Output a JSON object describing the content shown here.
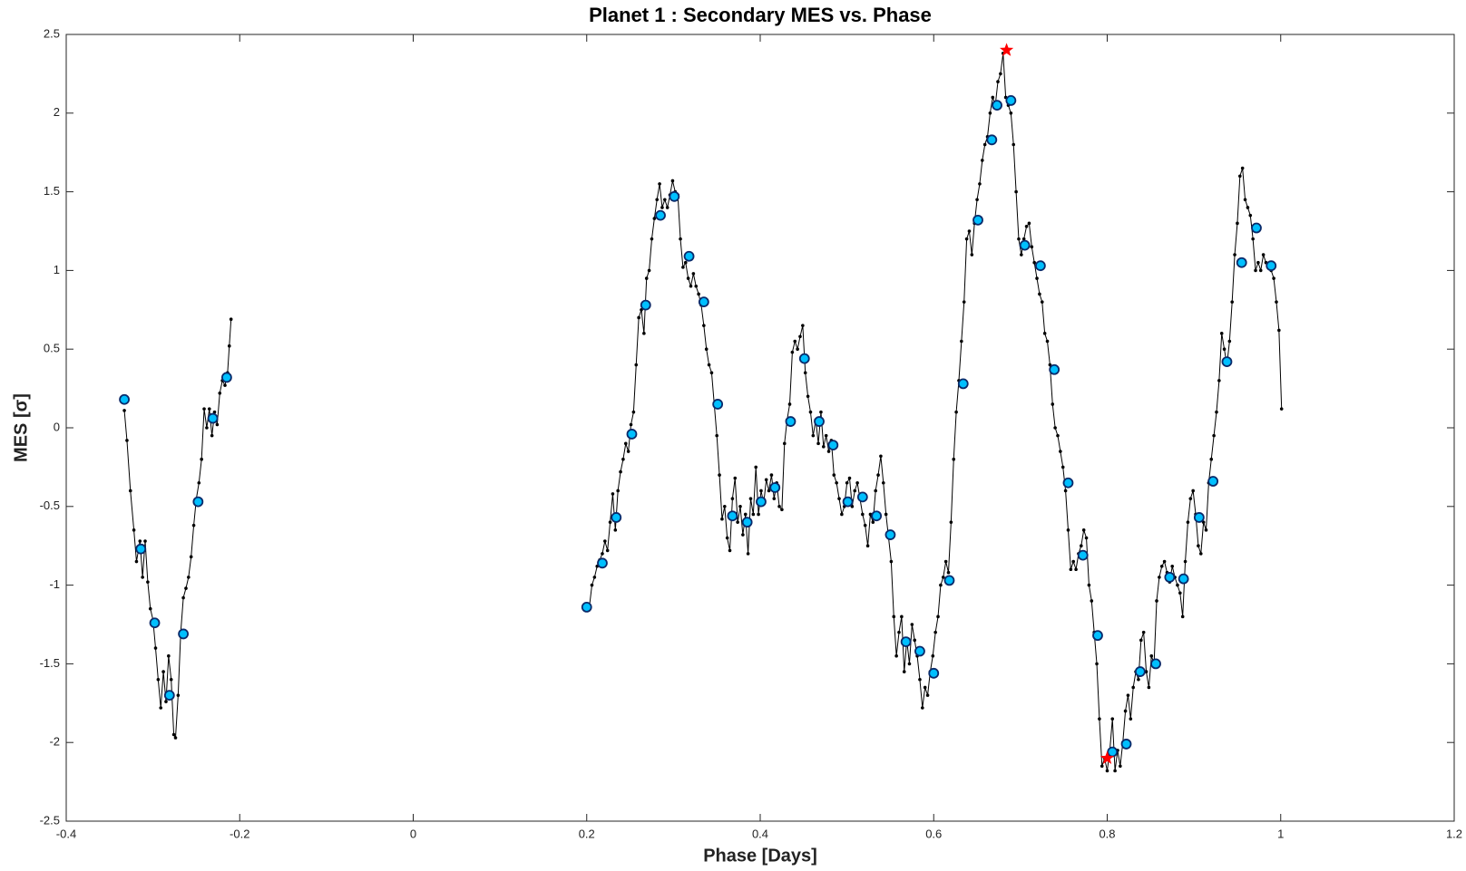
{
  "chart_data": {
    "type": "line",
    "title": "Planet 1 : Secondary MES vs. Phase",
    "xlabel": "Phase [Days]",
    "ylabel": "MES [σ]",
    "xlim": [
      -0.4,
      1.2
    ],
    "xticks": [
      -0.4,
      -0.2,
      0,
      0.2,
      0.4,
      0.6,
      0.8,
      1,
      1.2
    ],
    "ylim": [
      -2.5,
      2.5
    ],
    "yticks": [
      -2.5,
      -2,
      -1.5,
      -1,
      -0.5,
      0,
      0.5,
      1,
      1.5,
      2,
      2.5
    ],
    "grid": false,
    "series": [
      {
        "color": "#000000",
        "marker": "dot",
        "line": true,
        "x": [
          -0.333,
          -0.33,
          -0.326,
          -0.322,
          -0.319,
          -0.315,
          -0.312,
          -0.309,
          -0.306,
          -0.303,
          -0.3,
          -0.297,
          -0.294,
          -0.291,
          -0.288,
          -0.285,
          -0.282,
          -0.279,
          -0.276,
          -0.274,
          -0.271,
          -0.268,
          -0.265,
          -0.262,
          -0.259,
          -0.256,
          -0.253,
          -0.25,
          -0.247,
          -0.244,
          -0.241,
          -0.238,
          -0.235,
          -0.232,
          -0.229,
          -0.226,
          -0.223,
          -0.22,
          -0.217,
          -0.214,
          -0.212,
          -0.21
        ],
        "values": [
          0.11,
          -0.08,
          -0.4,
          -0.65,
          -0.85,
          -0.72,
          -0.95,
          -0.72,
          -0.98,
          -1.15,
          -1.22,
          -1.4,
          -1.6,
          -1.78,
          -1.55,
          -1.74,
          -1.45,
          -1.6,
          -1.95,
          -1.97,
          -1.7,
          -1.3,
          -1.08,
          -1.02,
          -0.95,
          -0.82,
          -0.62,
          -0.45,
          -0.35,
          -0.2,
          0.12,
          0,
          0.12,
          -0.05,
          0.1,
          0.02,
          0.22,
          0.3,
          0.27,
          0.35,
          0.52,
          0.69
        ]
      },
      {
        "color": "#000000",
        "marker": "dot",
        "line": true,
        "x": [
          0.2,
          0.203,
          0.206,
          0.209,
          0.212,
          0.215,
          0.218,
          0.221,
          0.224,
          0.227,
          0.23,
          0.233,
          0.236,
          0.239,
          0.242,
          0.245,
          0.248,
          0.251,
          0.254,
          0.257,
          0.26,
          0.263,
          0.266,
          0.269,
          0.272,
          0.275,
          0.278,
          0.281,
          0.284,
          0.287,
          0.29,
          0.293,
          0.296,
          0.299,
          0.302,
          0.305,
          0.308,
          0.311,
          0.314,
          0.317,
          0.32,
          0.323,
          0.326,
          0.329,
          0.332,
          0.335,
          0.338,
          0.341,
          0.344,
          0.347,
          0.35,
          0.353,
          0.356,
          0.359,
          0.362,
          0.365,
          0.368,
          0.371,
          0.374,
          0.377,
          0.38,
          0.383,
          0.386,
          0.389,
          0.392,
          0.395,
          0.398,
          0.401,
          0.404,
          0.407,
          0.41,
          0.413,
          0.416,
          0.419,
          0.422,
          0.425,
          0.428,
          0.431,
          0.434,
          0.437,
          0.44,
          0.443,
          0.446,
          0.449,
          0.452,
          0.455,
          0.458,
          0.461,
          0.464,
          0.467,
          0.47,
          0.473,
          0.476,
          0.479,
          0.482,
          0.485,
          0.488,
          0.491,
          0.494,
          0.497,
          0.5,
          0.503,
          0.506,
          0.509,
          0.512,
          0.515,
          0.518,
          0.521,
          0.524,
          0.527,
          0.53,
          0.533,
          0.536,
          0.539,
          0.542,
          0.545,
          0.548,
          0.551,
          0.554,
          0.557,
          0.56,
          0.563,
          0.566,
          0.569,
          0.572,
          0.575,
          0.578,
          0.581,
          0.584,
          0.587,
          0.59,
          0.593,
          0.596,
          0.599,
          0.602,
          0.605,
          0.608,
          0.611,
          0.614,
          0.617,
          0.62,
          0.623,
          0.626,
          0.629,
          0.632,
          0.635,
          0.638,
          0.641,
          0.644,
          0.647,
          0.65,
          0.653,
          0.656,
          0.659,
          0.662,
          0.665,
          0.668,
          0.671,
          0.674,
          0.677,
          0.68,
          0.683,
          0.686,
          0.689,
          0.692,
          0.695,
          0.698,
          0.701,
          0.704,
          0.707,
          0.71,
          0.713,
          0.716,
          0.719,
          0.722,
          0.725,
          0.728,
          0.731,
          0.734,
          0.737,
          0.74,
          0.743,
          0.746,
          0.749,
          0.752,
          0.755,
          0.758,
          0.761,
          0.764,
          0.767,
          0.77,
          0.773,
          0.776,
          0.779,
          0.782,
          0.785,
          0.788,
          0.791,
          0.794,
          0.797,
          0.8,
          0.803,
          0.806,
          0.809,
          0.812,
          0.815,
          0.818,
          0.821,
          0.824,
          0.827,
          0.83,
          0.833,
          0.836,
          0.839,
          0.842,
          0.845,
          0.848,
          0.851,
          0.854,
          0.857,
          0.86,
          0.863,
          0.866,
          0.869,
          0.872,
          0.875,
          0.878,
          0.881,
          0.884,
          0.887,
          0.89,
          0.893,
          0.896,
          0.899,
          0.902,
          0.905,
          0.908,
          0.911,
          0.914,
          0.917,
          0.92,
          0.923,
          0.926,
          0.929,
          0.932,
          0.935,
          0.938,
          0.941,
          0.944,
          0.947,
          0.95,
          0.953,
          0.956,
          0.959,
          0.962,
          0.965,
          0.968,
          0.971,
          0.974,
          0.977,
          0.98,
          0.983,
          0.986,
          0.989,
          0.992,
          0.995,
          0.998,
          1.001
        ],
        "values": [
          -1.14,
          -1.14,
          -1.0,
          -0.95,
          -0.88,
          -0.84,
          -0.8,
          -0.72,
          -0.78,
          -0.6,
          -0.42,
          -0.65,
          -0.4,
          -0.28,
          -0.2,
          -0.1,
          -0.15,
          0.02,
          0.1,
          0.4,
          0.7,
          0.75,
          0.6,
          0.95,
          1.0,
          1.2,
          1.33,
          1.45,
          1.55,
          1.4,
          1.45,
          1.4,
          1.48,
          1.57,
          1.5,
          1.48,
          1.2,
          1.02,
          1.05,
          0.95,
          0.9,
          0.98,
          0.9,
          0.85,
          0.78,
          0.65,
          0.5,
          0.4,
          0.35,
          0.15,
          -0.05,
          -0.3,
          -0.58,
          -0.5,
          -0.7,
          -0.78,
          -0.45,
          -0.32,
          -0.6,
          -0.5,
          -0.68,
          -0.55,
          -0.8,
          -0.45,
          -0.55,
          -0.25,
          -0.55,
          -0.4,
          -0.48,
          -0.33,
          -0.4,
          -0.3,
          -0.45,
          -0.35,
          -0.5,
          -0.52,
          -0.1,
          0.05,
          0.15,
          0.48,
          0.55,
          0.5,
          0.58,
          0.65,
          0.35,
          0.2,
          0.1,
          -0.05,
          0.05,
          -0.1,
          0.1,
          -0.12,
          -0.05,
          -0.15,
          -0.08,
          -0.3,
          -0.35,
          -0.45,
          -0.55,
          -0.5,
          -0.35,
          -0.32,
          -0.5,
          -0.4,
          -0.35,
          -0.45,
          -0.55,
          -0.62,
          -0.75,
          -0.55,
          -0.6,
          -0.4,
          -0.3,
          -0.18,
          -0.35,
          -0.55,
          -0.7,
          -0.85,
          -1.2,
          -1.45,
          -1.3,
          -1.2,
          -1.55,
          -1.35,
          -1.5,
          -1.25,
          -1.35,
          -1.45,
          -1.6,
          -1.78,
          -1.65,
          -1.7,
          -1.55,
          -1.45,
          -1.3,
          -1.2,
          -1.0,
          -0.95,
          -0.85,
          -0.92,
          -0.6,
          -0.2,
          0.1,
          0.3,
          0.55,
          0.8,
          1.2,
          1.25,
          1.1,
          1.3,
          1.45,
          1.55,
          1.7,
          1.8,
          1.85,
          2.0,
          2.1,
          2.05,
          2.2,
          2.25,
          2.38,
          2.1,
          2.05,
          2.0,
          1.8,
          1.5,
          1.2,
          1.1,
          1.2,
          1.28,
          1.3,
          1.15,
          1.05,
          0.95,
          0.85,
          0.8,
          0.6,
          0.55,
          0.4,
          0.15,
          0,
          -0.05,
          -0.15,
          -0.25,
          -0.4,
          -0.65,
          -0.9,
          -0.85,
          -0.9,
          -0.8,
          -0.75,
          -0.65,
          -0.7,
          -1.0,
          -1.1,
          -1.3,
          -1.5,
          -1.85,
          -2.15,
          -2.1,
          -2.18,
          -2.05,
          -1.85,
          -2.18,
          -2.05,
          -2.15,
          -2.0,
          -1.8,
          -1.7,
          -1.85,
          -1.65,
          -1.55,
          -1.6,
          -1.35,
          -1.3,
          -1.55,
          -1.65,
          -1.45,
          -1.5,
          -1.1,
          -0.95,
          -0.88,
          -0.85,
          -0.92,
          -0.98,
          -0.88,
          -0.95,
          -1.0,
          -1.05,
          -1.2,
          -0.85,
          -0.6,
          -0.45,
          -0.4,
          -0.55,
          -0.75,
          -0.8,
          -0.6,
          -0.65,
          -0.35,
          -0.2,
          -0.05,
          0.1,
          0.3,
          0.6,
          0.5,
          0.4,
          0.55,
          0.8,
          1.1,
          1.3,
          1.6,
          1.65,
          1.45,
          1.4,
          1.35,
          1.2,
          1.0,
          1.05,
          1.0,
          1.1,
          1.05,
          1.02,
          1.0,
          0.95,
          0.8,
          0.62,
          0.12
        ]
      },
      {
        "color": "#00bfff",
        "marker": "circle",
        "line": false,
        "x": [
          -0.333,
          -0.314,
          -0.298,
          -0.281,
          -0.265,
          -0.248,
          -0.231,
          -0.215,
          0.2,
          0.218,
          0.234,
          0.252,
          0.268,
          0.285,
          0.301,
          0.318,
          0.335,
          0.351,
          0.368,
          0.385,
          0.401,
          0.417,
          0.435,
          0.451,
          0.468,
          0.484,
          0.501,
          0.518,
          0.534,
          0.55,
          0.568,
          0.584,
          0.6,
          0.618,
          0.634,
          0.651,
          0.667,
          0.673,
          0.689,
          0.705,
          0.723,
          0.739,
          0.755,
          0.772,
          0.789,
          0.806,
          0.822,
          0.838,
          0.856,
          0.872,
          0.888,
          0.906,
          0.922,
          0.938,
          0.955,
          0.972,
          0.989
        ],
        "values": [
          0.18,
          -0.77,
          -1.24,
          -1.7,
          -1.31,
          -0.47,
          0.06,
          0.32,
          -1.14,
          -0.86,
          -0.57,
          -0.04,
          0.78,
          1.35,
          1.47,
          1.09,
          0.8,
          0.15,
          -0.56,
          -0.6,
          -0.47,
          -0.38,
          0.04,
          0.44,
          0.04,
          -0.11,
          -0.47,
          -0.44,
          -0.56,
          -0.68,
          -1.36,
          -1.42,
          -1.56,
          -0.97,
          0.28,
          1.32,
          1.83,
          2.05,
          2.08,
          1.16,
          1.03,
          0.37,
          -0.35,
          -0.81,
          -1.32,
          -2.06,
          -2.01,
          -1.55,
          -1.5,
          -0.95,
          -0.96,
          -0.57,
          -0.34,
          0.42,
          1.05,
          1.27,
          1.03
        ]
      },
      {
        "color": "#ff0000",
        "marker": "star",
        "line": false,
        "x": [
          0.684,
          0.8
        ],
        "values": [
          2.4,
          -2.1
        ]
      }
    ]
  }
}
